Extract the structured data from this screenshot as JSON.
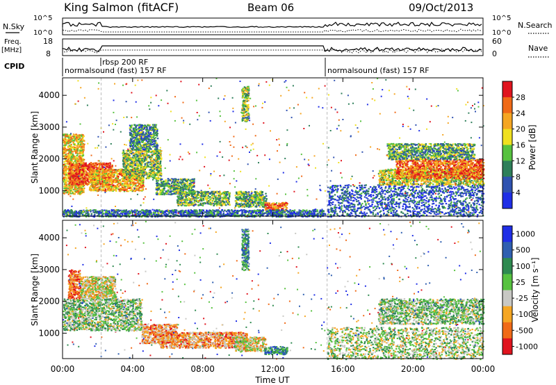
{
  "header": {
    "station": "King Salmon (fitACF)",
    "beam": "Beam 06",
    "date": "09/Oct/2013"
  },
  "summary_panels": {
    "nsky": {
      "left_label": "N.Sky",
      "right_label": "N.Search",
      "left_ticks": [
        "10^5",
        "10^0"
      ],
      "right_ticks": [
        "10^5",
        "10^0"
      ]
    },
    "freq": {
      "left_label_line1": "Freq.",
      "left_label_line2": "[MHz]",
      "right_label": "Nave",
      "left_ticks": [
        "18",
        "8"
      ],
      "right_ticks": [
        "60",
        "0"
      ]
    },
    "cpid": {
      "label": "CPID",
      "modes": [
        {
          "name": "normalsound (fast) 157 RF",
          "start_h": 0.0,
          "end_h": 2.2
        },
        {
          "name": "rbsp 200 RF",
          "start_h": 2.2,
          "end_h": 15.1
        },
        {
          "name": "normalsound (fast) 157 RF",
          "start_h": 15.1,
          "end_h": 24.0
        }
      ]
    }
  },
  "chart_data": [
    {
      "type": "heatmap",
      "name": "power",
      "ylabel": "Slant Range [km]",
      "xlabel": "Time UT",
      "xlim": [
        0,
        24
      ],
      "ylim": [
        200,
        4550
      ],
      "yticks": [
        "1000",
        "2000",
        "3000",
        "4000"
      ],
      "xticks": [
        "00:00",
        "04:00",
        "08:00",
        "12:00",
        "16:00",
        "20:00",
        "00:00"
      ],
      "colorbar": {
        "label": "Power [dB]",
        "ticks": [
          "4",
          "8",
          "12",
          "16",
          "20",
          "24",
          "28"
        ],
        "colors": [
          "#1f2ee6",
          "#2f52b0",
          "#2e7f5a",
          "#57c23f",
          "#f0e020",
          "#f5a623",
          "#f06a17",
          "#e0141e"
        ]
      },
      "regions": [
        {
          "t0": 0.0,
          "t1": 1.2,
          "r0": 900,
          "r1": 2800,
          "level": 0.65
        },
        {
          "t0": 0.3,
          "t1": 2.8,
          "r0": 1200,
          "r1": 1900,
          "level": 0.9
        },
        {
          "t0": 1.5,
          "t1": 4.6,
          "r0": 1000,
          "r1": 1700,
          "level": 0.7
        },
        {
          "t0": 3.4,
          "t1": 5.6,
          "r0": 1400,
          "r1": 2300,
          "level": 0.45
        },
        {
          "t0": 3.8,
          "t1": 5.4,
          "r0": 2300,
          "r1": 3100,
          "level": 0.3
        },
        {
          "t0": 5.3,
          "t1": 7.5,
          "r0": 900,
          "r1": 1400,
          "level": 0.35
        },
        {
          "t0": 6.5,
          "t1": 9.5,
          "r0": 550,
          "r1": 1000,
          "level": 0.4
        },
        {
          "t0": 9.8,
          "t1": 11.6,
          "r0": 500,
          "r1": 1000,
          "level": 0.4
        },
        {
          "t0": 10.2,
          "t1": 10.6,
          "r0": 3200,
          "r1": 4300,
          "level": 0.45
        },
        {
          "t0": 11.5,
          "t1": 12.8,
          "r0": 400,
          "r1": 650,
          "level": 0.85
        },
        {
          "t0": 0.0,
          "t1": 15.0,
          "r0": 200,
          "r1": 420,
          "level": 0.2
        },
        {
          "t0": 15.1,
          "t1": 24.0,
          "r0": 200,
          "r1": 1200,
          "level": 0.12
        },
        {
          "t0": 18.0,
          "t1": 24.0,
          "r0": 1200,
          "r1": 1700,
          "level": 0.55
        },
        {
          "t0": 19.0,
          "t1": 24.0,
          "r0": 1400,
          "r1": 2000,
          "level": 0.85
        },
        {
          "t0": 18.5,
          "t1": 23.5,
          "r0": 2000,
          "r1": 2500,
          "level": 0.35
        }
      ]
    },
    {
      "type": "heatmap",
      "name": "velocity",
      "ylabel": "Slant Range [km]",
      "xlabel": "Time UT",
      "xlim": [
        0,
        24
      ],
      "ylim": [
        200,
        4550
      ],
      "yticks": [
        "1000",
        "2000",
        "3000",
        "4000"
      ],
      "xticks": [
        "00:00",
        "04:00",
        "08:00",
        "12:00",
        "16:00",
        "20:00",
        "00:00"
      ],
      "colorbar": {
        "label": "Velocity [m s⁻¹]",
        "ticks": [
          "1000",
          "500",
          "100",
          "25",
          "-25",
          "-100",
          "-500",
          "-1000"
        ],
        "colors": [
          "#1f2ee6",
          "#2f5fb0",
          "#2e8a50",
          "#57c23f",
          "#c8c8c4",
          "#f5a623",
          "#f06a17",
          "#e0141e"
        ]
      },
      "regions": [
        {
          "t0": 0.0,
          "t1": 4.5,
          "r0": 1100,
          "r1": 2100,
          "level": 0.45
        },
        {
          "t0": 0.3,
          "t1": 1.0,
          "r0": 2100,
          "r1": 3000,
          "level": 0.85
        },
        {
          "t0": 1.0,
          "t1": 3.0,
          "r0": 2100,
          "r1": 2800,
          "level": 0.6
        },
        {
          "t0": 4.5,
          "t1": 6.5,
          "r0": 700,
          "r1": 1300,
          "level": 0.75
        },
        {
          "t0": 5.5,
          "t1": 10.5,
          "r0": 550,
          "r1": 1050,
          "level": 0.75
        },
        {
          "t0": 9.8,
          "t1": 11.6,
          "r0": 450,
          "r1": 900,
          "level": 0.6
        },
        {
          "t0": 10.2,
          "t1": 10.6,
          "r0": 3000,
          "r1": 4300,
          "level": 0.3
        },
        {
          "t0": 11.5,
          "t1": 12.8,
          "r0": 350,
          "r1": 600,
          "level": 0.25
        },
        {
          "t0": 15.1,
          "t1": 24.0,
          "r0": 200,
          "r1": 1200,
          "level": 0.5
        },
        {
          "t0": 18.0,
          "t1": 24.0,
          "r0": 1300,
          "r1": 2100,
          "level": 0.45
        }
      ]
    }
  ],
  "markers": {
    "dashed_hours": [
      2.2,
      15.1
    ]
  }
}
